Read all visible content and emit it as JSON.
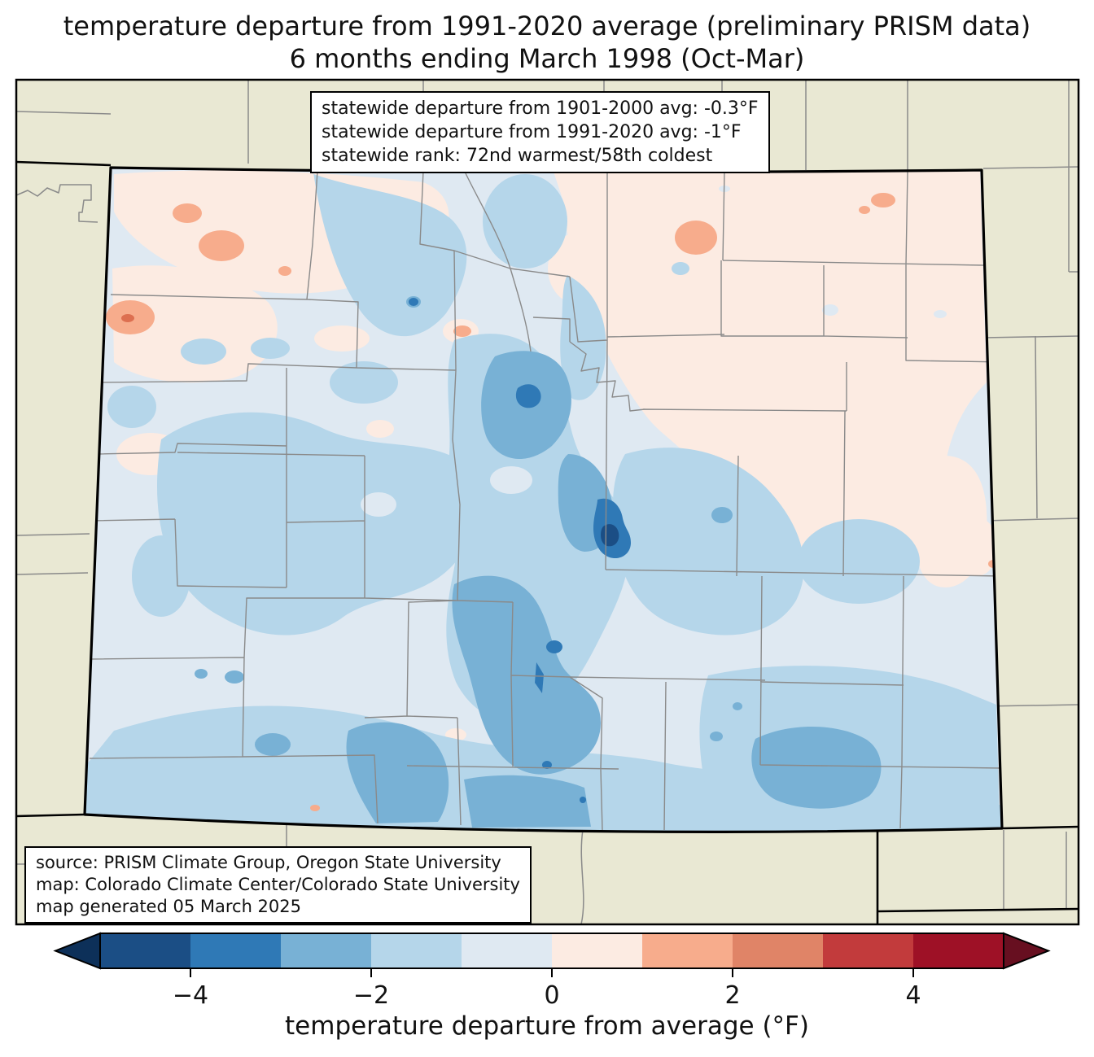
{
  "title": {
    "line1": "temperature departure from 1991-2020 average (preliminary PRISM data)",
    "line2": "6 months ending March 1998 (Oct-Mar)"
  },
  "stats_box": {
    "lines": [
      "statewide departure from 1901-2000 avg: -0.3°F",
      "statewide departure from 1991-2020 avg: -1°F",
      "statewide rank: 72nd warmest/58th coldest"
    ]
  },
  "source_box": {
    "lines": [
      "source: PRISM Climate Group, Oregon State University",
      "map: Colorado Climate Center/Colorado State University",
      "map generated 05 March 2025"
    ]
  },
  "colorbar": {
    "label": "temperature departure from average (°F)",
    "ticks": [
      "−4",
      "−2",
      "0",
      "2",
      "4"
    ],
    "segment_colors": [
      "#1b4e85",
      "#2f79b6",
      "#78b1d5",
      "#b5d6ea",
      "#dfe9f2",
      "#fcebe2",
      "#f7ac8c",
      "#e08467",
      "#c23b3c",
      "#9e1126"
    ],
    "under_arrow_color": "#0d3059",
    "over_arrow_color": "#670f20"
  },
  "map": {
    "region": "Colorado with county boundaries",
    "outside_fill": "#e9e8d3",
    "county_line_color": "#8a8a8a",
    "state_border_color": "#000000",
    "levels": {
      "minus4_to_minus5": "#1b4e85",
      "minus3_to_minus4": "#2f79b6",
      "minus2_to_minus3": "#78b1d5",
      "minus1_to_minus2": "#b5d6ea",
      "zero_to_minus1": "#dfe9f2",
      "zero_to_plus1": "#fcebe2",
      "plus1_to_plus2": "#f7ac8c",
      "plus2_to_plus3": "#dd6f50"
    }
  },
  "chart_data": {
    "type": "heatmap",
    "title": "temperature departure from 1991-2020 average (preliminary PRISM data) — 6 months ending March 1998 (Oct-Mar)",
    "region": "Colorado (filled-contour map with county boundaries)",
    "colorbar_label": "temperature departure from average (°F)",
    "colorbar_ticks": [
      -4,
      -2,
      0,
      2,
      4
    ],
    "colorbar_range": [
      -5,
      5
    ],
    "bin_size_F": 1,
    "legend_position": "bottom horizontal colorbar with under/over arrows",
    "statewide_departure_from_1901_2000_avg_F": -0.3,
    "statewide_departure_from_1991_2020_avg_F": -1,
    "statewide_rank": "72nd warmest/58th coldest",
    "spatial_pattern": [
      {
        "area": "most of state",
        "value_F": "0 to -2"
      },
      {
        "area": "central and southern mountains",
        "value_F": "-2 to -3"
      },
      {
        "area": "small cores near central mountains (Park/Chaffee area)",
        "value_F": "-3 to -5"
      },
      {
        "area": "southeast plains blob",
        "value_F": "-2 to -3"
      },
      {
        "area": "northeast plains",
        "value_F": "0 to +1"
      },
      {
        "area": "northwest spots and NE salmon blobs",
        "value_F": "+1 to +2"
      },
      {
        "area": "tiny west-edge core",
        "value_F": "+2 to +3"
      }
    ]
  }
}
